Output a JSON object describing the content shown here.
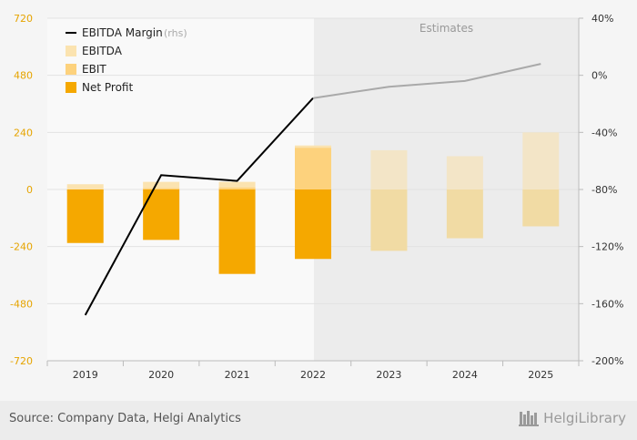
{
  "chart_data": {
    "type": "bar",
    "categories": [
      "2019",
      "2020",
      "2021",
      "2022",
      "2023",
      "2024",
      "2025"
    ],
    "estimate_region_label": "Estimates",
    "estimate_start_index": 4,
    "left_axis": {
      "ticks": [
        720,
        480,
        240,
        0,
        -240,
        -480,
        -720
      ],
      "ylim": [
        -720,
        720
      ]
    },
    "right_axis": {
      "ticks": [
        "40%",
        "0%",
        "-40%",
        "-80%",
        "-120%",
        "-160%",
        "-200%"
      ],
      "ylim": [
        -200,
        40
      ]
    },
    "legend": {
      "ebitda_margin": "EBITDA Margin",
      "rhs_note": "(rhs)",
      "ebitda": "EBITDA",
      "ebit": "EBIT",
      "net_profit": "Net Profit"
    },
    "series": [
      {
        "name": "EBITDA",
        "values": [
          22,
          32,
          32,
          185,
          165,
          140,
          240
        ]
      },
      {
        "name": "EBIT",
        "values": [
          -15,
          5,
          8,
          175,
          -20,
          -25,
          -20
        ]
      },
      {
        "name": "Net Profit",
        "values": [
          -225,
          -212,
          -355,
          -292,
          -258,
          -205,
          -155
        ]
      },
      {
        "name": "EBITDA Margin",
        "axis": "rhs",
        "values": [
          -168,
          -70,
          -74,
          -16,
          -8,
          -4,
          8
        ]
      }
    ],
    "colors": {
      "ebitda": "#fbe3b0",
      "ebit": "#fdd27d",
      "net_profit": "#f5a800",
      "estimate_fill": "#f3e5c7",
      "estimate_fill_lower": "#f1dba4",
      "margin_actual": "#000000",
      "margin_estimate": "#a9a9a9",
      "left_axis_text": "#e6a400",
      "right_axis_text": "#333333",
      "estimate_band": "#ececec"
    }
  },
  "footer": {
    "source": "Source: Company Data, Helgi Analytics",
    "brand": "HelgiLibrary"
  }
}
